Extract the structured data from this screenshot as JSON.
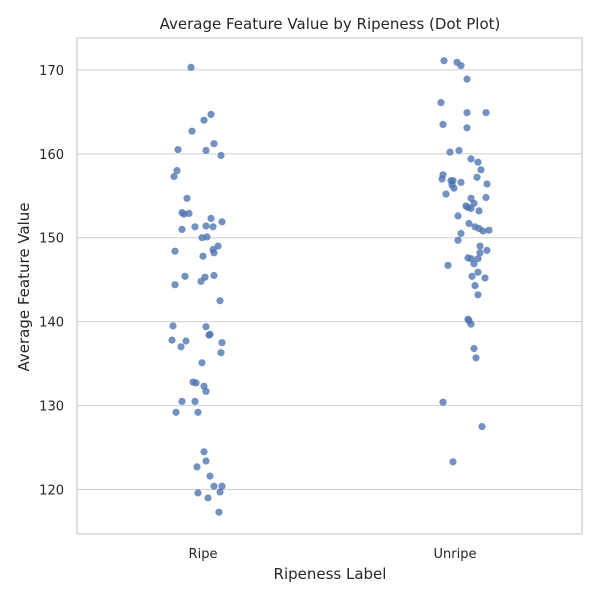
{
  "chart_data": {
    "type": "scatter",
    "title": "Average Feature Value by Ripeness (Dot Plot)",
    "xlabel": "Ripeness Label",
    "ylabel": "Average Feature Value",
    "categories": [
      "Ripe",
      "Unripe"
    ],
    "ylim": [
      114.7,
      173.8
    ],
    "yticks": [
      120,
      130,
      140,
      150,
      160,
      170
    ],
    "grid": true,
    "colors": {
      "points": "#4c72b0",
      "grid": "#cfcfcf",
      "spine": "#cccccc",
      "text": "#262626"
    },
    "series": [
      {
        "category": "Ripe",
        "points": [
          {
            "x": -0.12,
            "y": 170.3
          },
          {
            "x": 0.08,
            "y": 164.7
          },
          {
            "x": 0.01,
            "y": 164.0
          },
          {
            "x": -0.11,
            "y": 162.7
          },
          {
            "x": 0.11,
            "y": 161.2
          },
          {
            "x": -0.25,
            "y": 160.5
          },
          {
            "x": 0.03,
            "y": 160.4
          },
          {
            "x": 0.18,
            "y": 159.8
          },
          {
            "x": -0.26,
            "y": 158.0
          },
          {
            "x": -0.29,
            "y": 157.3
          },
          {
            "x": -0.16,
            "y": 154.7
          },
          {
            "x": -0.21,
            "y": 153.0
          },
          {
            "x": -0.19,
            "y": 152.8
          },
          {
            "x": -0.14,
            "y": 152.9
          },
          {
            "x": 0.08,
            "y": 152.3
          },
          {
            "x": 0.19,
            "y": 151.9
          },
          {
            "x": -0.08,
            "y": 151.3
          },
          {
            "x": 0.03,
            "y": 151.4
          },
          {
            "x": 0.1,
            "y": 151.3
          },
          {
            "x": -0.21,
            "y": 151.0
          },
          {
            "x": -0.01,
            "y": 150.0
          },
          {
            "x": 0.04,
            "y": 150.1
          },
          {
            "x": 0.15,
            "y": 149.0
          },
          {
            "x": 0.1,
            "y": 148.6
          },
          {
            "x": -0.28,
            "y": 148.4
          },
          {
            "x": 0.11,
            "y": 148.2
          },
          {
            "x": 0.0,
            "y": 147.8
          },
          {
            "x": -0.18,
            "y": 145.4
          },
          {
            "x": 0.02,
            "y": 145.3
          },
          {
            "x": 0.11,
            "y": 145.5
          },
          {
            "x": -0.02,
            "y": 144.8
          },
          {
            "x": -0.28,
            "y": 144.4
          },
          {
            "x": 0.17,
            "y": 142.5
          },
          {
            "x": -0.3,
            "y": 139.5
          },
          {
            "x": 0.03,
            "y": 139.4
          },
          {
            "x": 0.06,
            "y": 138.4
          },
          {
            "x": 0.07,
            "y": 138.5
          },
          {
            "x": -0.31,
            "y": 137.8
          },
          {
            "x": -0.17,
            "y": 137.7
          },
          {
            "x": 0.19,
            "y": 137.5
          },
          {
            "x": -0.22,
            "y": 137.0
          },
          {
            "x": 0.18,
            "y": 136.3
          },
          {
            "x": -0.01,
            "y": 135.1
          },
          {
            "x": -0.1,
            "y": 132.8
          },
          {
            "x": -0.07,
            "y": 132.7
          },
          {
            "x": 0.01,
            "y": 132.3
          },
          {
            "x": 0.03,
            "y": 131.7
          },
          {
            "x": -0.21,
            "y": 130.5
          },
          {
            "x": -0.08,
            "y": 130.5
          },
          {
            "x": -0.27,
            "y": 129.2
          },
          {
            "x": -0.05,
            "y": 129.2
          },
          {
            "x": 0.01,
            "y": 124.5
          },
          {
            "x": 0.03,
            "y": 123.4
          },
          {
            "x": -0.06,
            "y": 122.7
          },
          {
            "x": 0.07,
            "y": 121.6
          },
          {
            "x": 0.11,
            "y": 120.4
          },
          {
            "x": 0.19,
            "y": 120.4
          },
          {
            "x": -0.05,
            "y": 119.6
          },
          {
            "x": 0.17,
            "y": 119.7
          },
          {
            "x": 0.05,
            "y": 119.0
          },
          {
            "x": 0.16,
            "y": 117.3
          }
        ]
      },
      {
        "category": "Unripe",
        "points": [
          {
            "x": -0.11,
            "y": 171.1
          },
          {
            "x": 0.02,
            "y": 170.9
          },
          {
            "x": 0.06,
            "y": 170.5
          },
          {
            "x": 0.12,
            "y": 168.9
          },
          {
            "x": -0.14,
            "y": 166.1
          },
          {
            "x": 0.12,
            "y": 164.9
          },
          {
            "x": 0.31,
            "y": 164.9
          },
          {
            "x": -0.12,
            "y": 163.5
          },
          {
            "x": 0.12,
            "y": 163.1
          },
          {
            "x": -0.05,
            "y": 160.2
          },
          {
            "x": 0.04,
            "y": 160.4
          },
          {
            "x": 0.16,
            "y": 159.4
          },
          {
            "x": 0.23,
            "y": 159.0
          },
          {
            "x": 0.26,
            "y": 158.1
          },
          {
            "x": -0.12,
            "y": 157.5
          },
          {
            "x": 0.22,
            "y": 157.2
          },
          {
            "x": -0.13,
            "y": 157.0
          },
          {
            "x": -0.04,
            "y": 156.8
          },
          {
            "x": -0.02,
            "y": 156.8
          },
          {
            "x": 0.06,
            "y": 156.6
          },
          {
            "x": -0.03,
            "y": 156.3
          },
          {
            "x": 0.32,
            "y": 156.4
          },
          {
            "x": -0.01,
            "y": 155.9
          },
          {
            "x": -0.09,
            "y": 155.2
          },
          {
            "x": 0.16,
            "y": 154.7
          },
          {
            "x": 0.31,
            "y": 154.8
          },
          {
            "x": 0.19,
            "y": 154.1
          },
          {
            "x": 0.11,
            "y": 153.8
          },
          {
            "x": 0.13,
            "y": 153.6
          },
          {
            "x": 0.16,
            "y": 153.5
          },
          {
            "x": 0.24,
            "y": 153.2
          },
          {
            "x": 0.03,
            "y": 152.6
          },
          {
            "x": 0.14,
            "y": 151.7
          },
          {
            "x": 0.2,
            "y": 151.3
          },
          {
            "x": 0.24,
            "y": 151.1
          },
          {
            "x": 0.28,
            "y": 150.8
          },
          {
            "x": 0.34,
            "y": 150.9
          },
          {
            "x": 0.06,
            "y": 150.5
          },
          {
            "x": 0.03,
            "y": 149.7
          },
          {
            "x": 0.25,
            "y": 149.0
          },
          {
            "x": 0.32,
            "y": 148.5
          },
          {
            "x": 0.25,
            "y": 148.2
          },
          {
            "x": 0.13,
            "y": 147.6
          },
          {
            "x": 0.16,
            "y": 147.5
          },
          {
            "x": 0.23,
            "y": 147.5
          },
          {
            "x": 0.19,
            "y": 146.9
          },
          {
            "x": -0.07,
            "y": 146.7
          },
          {
            "x": 0.23,
            "y": 145.9
          },
          {
            "x": 0.17,
            "y": 145.4
          },
          {
            "x": 0.3,
            "y": 145.2
          },
          {
            "x": 0.2,
            "y": 144.3
          },
          {
            "x": 0.23,
            "y": 143.2
          },
          {
            "x": 0.13,
            "y": 140.3
          },
          {
            "x": 0.14,
            "y": 140.1
          },
          {
            "x": 0.16,
            "y": 139.7
          },
          {
            "x": 0.19,
            "y": 136.8
          },
          {
            "x": 0.21,
            "y": 135.7
          },
          {
            "x": -0.12,
            "y": 130.4
          },
          {
            "x": 0.27,
            "y": 127.5
          },
          {
            "x": -0.02,
            "y": 123.3
          }
        ]
      }
    ]
  }
}
